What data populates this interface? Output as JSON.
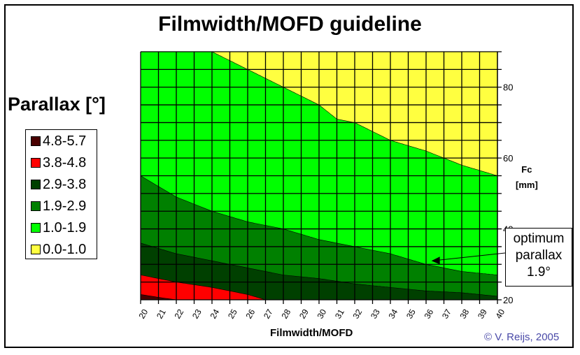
{
  "chart_data": {
    "type": "heatmap",
    "title": "Filmwidth/MOFD guideline",
    "xlabel": "Filmwidth/MOFD",
    "ylabel": "Fc [mm]",
    "ylabel_line1": "Fc",
    "ylabel_line2": "[mm]",
    "legend_title": "Parallax [°]",
    "x": [
      20,
      21,
      22,
      23,
      24,
      25,
      26,
      27,
      28,
      29,
      30,
      31,
      32,
      33,
      34,
      35,
      36,
      37,
      38,
      39,
      40
    ],
    "xlim": [
      20,
      40
    ],
    "ylim": [
      20,
      90
    ],
    "y_ticks": [
      20,
      40,
      60,
      80
    ],
    "y_grid_step": 5,
    "grid": true,
    "legend": [
      {
        "label": "4.8-5.7",
        "color": "#4a0000"
      },
      {
        "label": "3.8-4.8",
        "color": "#ff0000"
      },
      {
        "label": "2.9-3.8",
        "color": "#004000"
      },
      {
        "label": "1.9-2.9",
        "color": "#008000"
      },
      {
        "label": "1.0-1.9",
        "color": "#00ff00"
      },
      {
        "label": "0.0-1.0",
        "color": "#ffff40"
      }
    ],
    "boundaries": [
      {
        "between": "0.0-1.0 / 1.0-1.9",
        "x": [
          24,
          26,
          28,
          30,
          31,
          32,
          34,
          36,
          38,
          40
        ],
        "y": [
          90,
          85,
          80,
          75,
          71,
          70,
          65,
          62,
          58,
          55
        ]
      },
      {
        "between": "1.0-1.9 / 1.9-2.9",
        "x": [
          20,
          22,
          24,
          26,
          28,
          30,
          32,
          34,
          36,
          38,
          40
        ],
        "y": [
          55,
          49,
          45,
          42,
          40,
          37,
          35,
          33,
          30,
          28,
          27
        ]
      },
      {
        "between": "1.9-2.9 / 2.9-3.8",
        "x": [
          20,
          22,
          24,
          26,
          28,
          30,
          32,
          34,
          36,
          38,
          40
        ],
        "y": [
          36,
          33,
          31,
          29,
          27,
          26,
          24.5,
          23.5,
          22.5,
          22,
          21
        ]
      },
      {
        "between": "2.9-3.8 / 3.8-4.8",
        "x": [
          20,
          22,
          24,
          26,
          27
        ],
        "y": [
          27,
          25,
          23.5,
          21.5,
          20
        ]
      },
      {
        "between": "3.8-4.8 / 4.8-5.7",
        "x": [
          20,
          21,
          22
        ],
        "y": [
          21.5,
          20.7,
          20
        ]
      }
    ],
    "annotations": [
      {
        "text": "optimum parallax 1.9°",
        "points_to": {
          "x": 36.3,
          "y": 31
        }
      }
    ],
    "credit": "© V. Reijs, 2005"
  },
  "annotation": {
    "line1": "optimum",
    "line2": "parallax",
    "line3": "1.9°"
  }
}
